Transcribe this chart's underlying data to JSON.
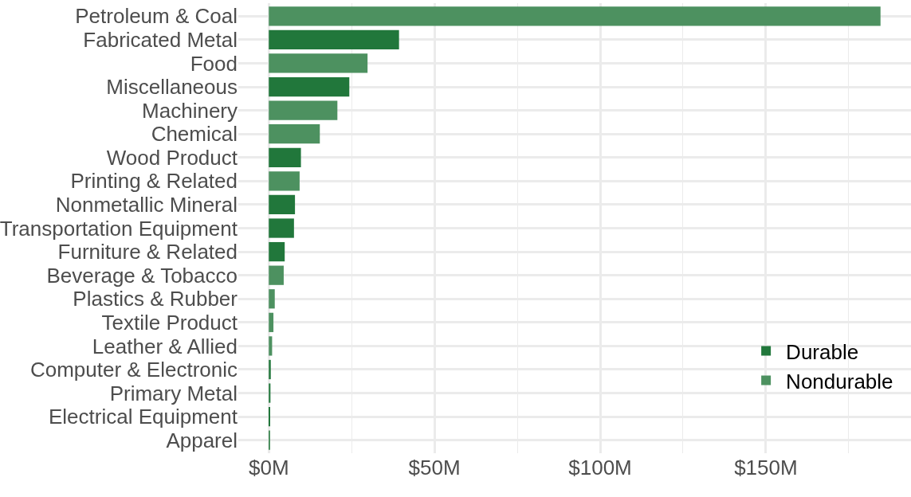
{
  "chart_data": {
    "type": "bar",
    "orientation": "horizontal",
    "categories": [
      "Petroleum & Coal",
      "Fabricated Metal",
      "Food",
      "Miscellaneous",
      "Machinery",
      "Chemical",
      "Wood Product",
      "Printing & Related",
      "Nonmetallic Mineral",
      "Transportation Equipment",
      "Furniture & Related",
      "Beverage & Tobacco",
      "Plastics & Rubber",
      "Textile Product",
      "Leather & Allied",
      "Computer & Electronic",
      "Primary Metal",
      "Electrical Equipment",
      "Apparel"
    ],
    "series": [
      {
        "name": "Durable",
        "color": "#21773b",
        "values": [
          null,
          39.3,
          null,
          24.3,
          null,
          null,
          9.7,
          null,
          7.9,
          7.6,
          4.8,
          null,
          null,
          null,
          null,
          0.6,
          0.5,
          0.3,
          null
        ]
      },
      {
        "name": "Nondurable",
        "color": "#4d9160",
        "values": [
          184.6,
          null,
          29.8,
          null,
          20.7,
          15.4,
          null,
          9.3,
          null,
          null,
          null,
          4.5,
          1.8,
          1.4,
          1.0,
          null,
          null,
          null,
          0.2
        ]
      }
    ],
    "xlim": [
      -9.2,
      193.8
    ],
    "xticks": [
      {
        "value": 0,
        "label": "$0M"
      },
      {
        "value": 25,
        "label": null
      },
      {
        "value": 50,
        "label": "$50M"
      },
      {
        "value": 75,
        "label": null
      },
      {
        "value": 100,
        "label": "$100M"
      },
      {
        "value": 125,
        "label": null
      },
      {
        "value": 150,
        "label": "$150M"
      },
      {
        "value": 175,
        "label": null
      }
    ],
    "grid": true,
    "legend": "bottom right"
  }
}
